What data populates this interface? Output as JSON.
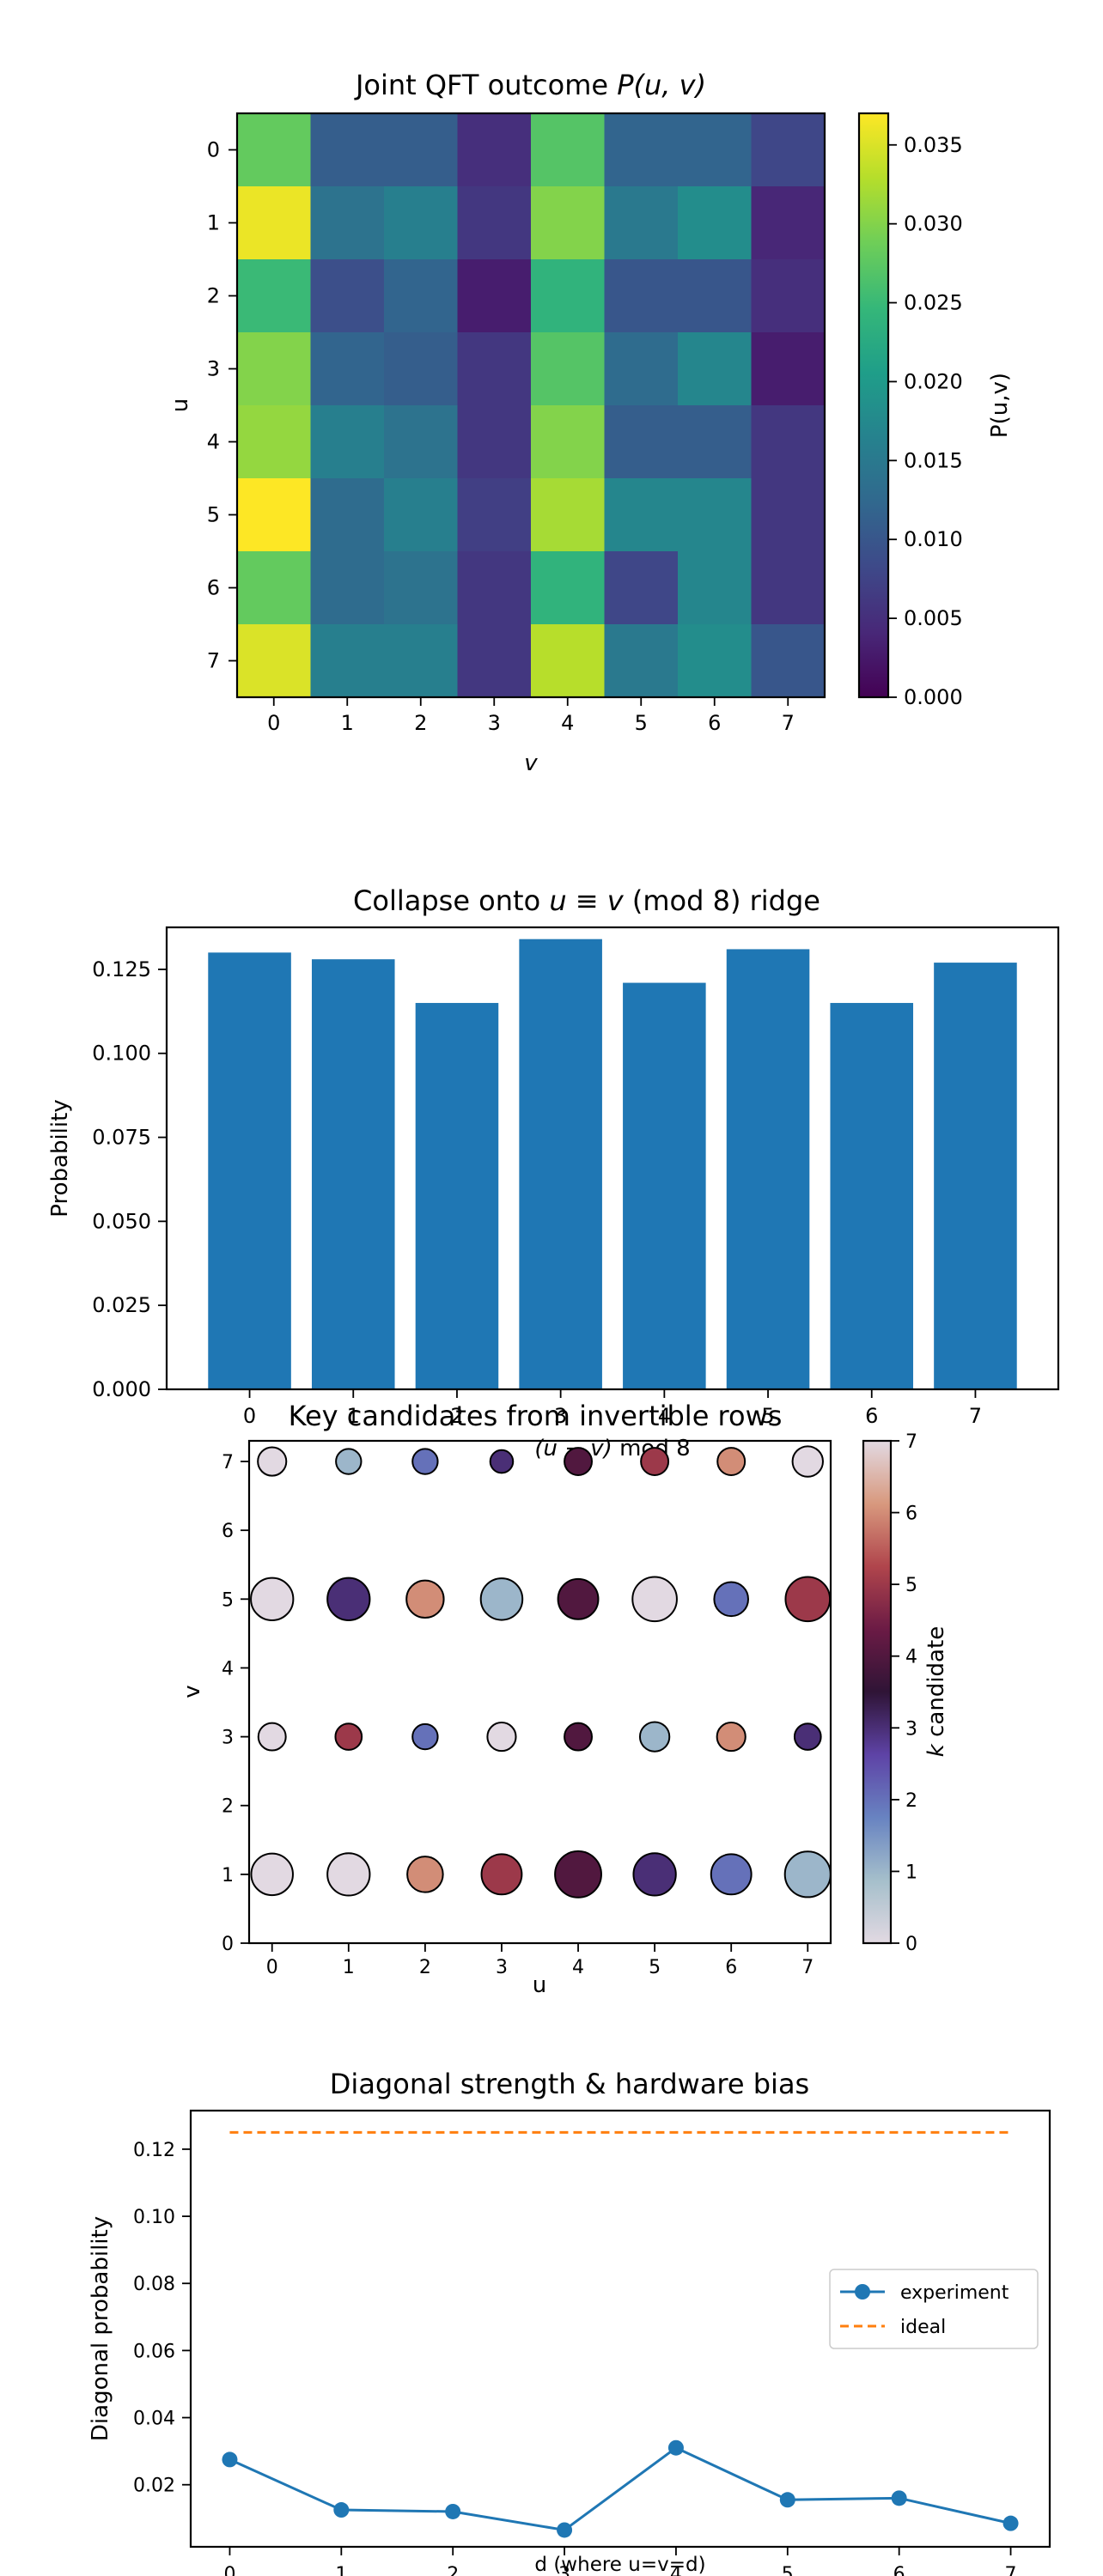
{
  "colors": {
    "bar": "#1f77b4",
    "experiment": "#1f77b4",
    "ideal": "#ff7f0e"
  },
  "chart_data": [
    {
      "type": "heatmap",
      "title_prefix": "Joint QFT outcome ",
      "title_math": "P(u, v)",
      "xlabel": "v",
      "ylabel": "u",
      "x_ticks": [
        "0",
        "1",
        "2",
        "3",
        "4",
        "5",
        "6",
        "7"
      ],
      "y_ticks": [
        "0",
        "1",
        "2",
        "3",
        "4",
        "5",
        "6",
        "7"
      ],
      "colormap": "viridis",
      "colorbar_label": "P(u,v)",
      "colorbar_range": [
        0,
        0.037
      ],
      "colorbar_ticks": [
        "0.000",
        "0.005",
        "0.010",
        "0.015",
        "0.020",
        "0.025",
        "0.030",
        "0.035"
      ],
      "colorbar_tick_values": [
        0,
        0.005,
        0.01,
        0.015,
        0.02,
        0.025,
        0.03,
        0.035
      ],
      "values": [
        [
          0.028,
          0.011,
          0.011,
          0.005,
          0.027,
          0.012,
          0.012,
          0.008
        ],
        [
          0.036,
          0.014,
          0.016,
          0.006,
          0.03,
          0.015,
          0.018,
          0.004
        ],
        [
          0.025,
          0.009,
          0.012,
          0.003,
          0.024,
          0.01,
          0.01,
          0.005
        ],
        [
          0.03,
          0.012,
          0.011,
          0.006,
          0.027,
          0.013,
          0.017,
          0.003
        ],
        [
          0.031,
          0.016,
          0.014,
          0.006,
          0.03,
          0.011,
          0.011,
          0.006
        ],
        [
          0.037,
          0.013,
          0.016,
          0.007,
          0.032,
          0.017,
          0.017,
          0.006
        ],
        [
          0.028,
          0.013,
          0.014,
          0.006,
          0.024,
          0.008,
          0.017,
          0.006
        ],
        [
          0.035,
          0.016,
          0.016,
          0.006,
          0.033,
          0.015,
          0.018,
          0.01
        ]
      ]
    },
    {
      "type": "bar",
      "title_prefix": "Collapse onto ",
      "title_math": "u ≡ v",
      "title_suffix": " (mod 8) ridge",
      "xlabel_math": "(u − v)",
      "xlabel_suffix": " mod 8",
      "ylabel": "Probability",
      "categories": [
        "0",
        "1",
        "2",
        "3",
        "4",
        "5",
        "6",
        "7"
      ],
      "values": [
        0.13,
        0.128,
        0.115,
        0.134,
        0.121,
        0.131,
        0.115,
        0.127
      ],
      "ylim": [
        0,
        0.1375
      ],
      "y_ticks": [
        "0.000",
        "0.025",
        "0.050",
        "0.075",
        "0.100",
        "0.125"
      ],
      "y_tick_values": [
        0,
        0.025,
        0.05,
        0.075,
        0.1,
        0.125
      ]
    },
    {
      "type": "scatter",
      "title": "Key candidates from invertible rows",
      "xlabel": "u",
      "ylabel": "v",
      "xlim": [
        -0.3,
        7.3
      ],
      "ylim": [
        0,
        7.3
      ],
      "x_ticks": [
        "0",
        "1",
        "2",
        "3",
        "4",
        "5",
        "6",
        "7"
      ],
      "y_ticks": [
        "0",
        "1",
        "2",
        "3",
        "4",
        "5",
        "6",
        "7"
      ],
      "colormap": "twilight",
      "colorbar_label_math": "k",
      "colorbar_label_suffix": " candidate",
      "colorbar_range": [
        0,
        7
      ],
      "colorbar_ticks": [
        "0",
        "1",
        "2",
        "3",
        "4",
        "5",
        "6",
        "7"
      ],
      "points": [
        {
          "u": 0,
          "v": 1,
          "k": 0,
          "p": 0.03
        },
        {
          "u": 1,
          "v": 1,
          "k": 0,
          "p": 0.031
        },
        {
          "u": 2,
          "v": 1,
          "k": 6,
          "p": 0.022
        },
        {
          "u": 3,
          "v": 1,
          "k": 5,
          "p": 0.028
        },
        {
          "u": 4,
          "v": 1,
          "k": 4,
          "p": 0.037
        },
        {
          "u": 5,
          "v": 1,
          "k": 3,
          "p": 0.031
        },
        {
          "u": 6,
          "v": 1,
          "k": 2,
          "p": 0.028
        },
        {
          "u": 7,
          "v": 1,
          "k": 1,
          "p": 0.036
        },
        {
          "u": 0,
          "v": 3,
          "k": 0,
          "p": 0.013
        },
        {
          "u": 1,
          "v": 3,
          "k": 5,
          "p": 0.012
        },
        {
          "u": 2,
          "v": 3,
          "k": 2,
          "p": 0.011
        },
        {
          "u": 3,
          "v": 3,
          "k": 0,
          "p": 0.014
        },
        {
          "u": 4,
          "v": 3,
          "k": 4,
          "p": 0.013
        },
        {
          "u": 5,
          "v": 3,
          "k": 1,
          "p": 0.015
        },
        {
          "u": 6,
          "v": 3,
          "k": 6,
          "p": 0.014
        },
        {
          "u": 7,
          "v": 3,
          "k": 3,
          "p": 0.012
        },
        {
          "u": 0,
          "v": 5,
          "k": 0,
          "p": 0.031
        },
        {
          "u": 1,
          "v": 5,
          "k": 3,
          "p": 0.031
        },
        {
          "u": 2,
          "v": 5,
          "k": 6,
          "p": 0.024
        },
        {
          "u": 3,
          "v": 5,
          "k": 1,
          "p": 0.03
        },
        {
          "u": 4,
          "v": 5,
          "k": 4,
          "p": 0.028
        },
        {
          "u": 5,
          "v": 5,
          "k": 0,
          "p": 0.034
        },
        {
          "u": 6,
          "v": 5,
          "k": 2,
          "p": 0.02
        },
        {
          "u": 7,
          "v": 5,
          "k": 5,
          "p": 0.034
        },
        {
          "u": 0,
          "v": 7,
          "k": 0,
          "p": 0.014
        },
        {
          "u": 1,
          "v": 7,
          "k": 1,
          "p": 0.011
        },
        {
          "u": 2,
          "v": 7,
          "k": 2,
          "p": 0.011
        },
        {
          "u": 3,
          "v": 7,
          "k": 3,
          "p": 0.009
        },
        {
          "u": 4,
          "v": 7,
          "k": 4,
          "p": 0.013
        },
        {
          "u": 5,
          "v": 7,
          "k": 5,
          "p": 0.013
        },
        {
          "u": 6,
          "v": 7,
          "k": 6,
          "p": 0.013
        },
        {
          "u": 7,
          "v": 7,
          "k": 0,
          "p": 0.016
        }
      ]
    },
    {
      "type": "line",
      "title": "Diagonal strength & hardware bias",
      "xlabel": "d  (where u=v=d)",
      "ylabel": "Diagonal probability",
      "x": [
        0,
        1,
        2,
        3,
        4,
        5,
        6,
        7
      ],
      "xlim": [
        -0.35,
        7.35
      ],
      "ylim": [
        0.0015,
        0.1315
      ],
      "x_ticks": [
        "0",
        "1",
        "2",
        "3",
        "4",
        "5",
        "6",
        "7"
      ],
      "y_ticks": [
        "0.02",
        "0.04",
        "0.06",
        "0.08",
        "0.10",
        "0.12"
      ],
      "y_tick_values": [
        0.02,
        0.04,
        0.06,
        0.08,
        0.1,
        0.12
      ],
      "legend_position": "center-right",
      "series": [
        {
          "name": "experiment",
          "style": "solid-marker",
          "values": [
            0.0275,
            0.0125,
            0.012,
            0.0065,
            0.031,
            0.0155,
            0.016,
            0.0085
          ]
        },
        {
          "name": "ideal",
          "style": "dashed",
          "values": [
            0.125,
            0.125,
            0.125,
            0.125,
            0.125,
            0.125,
            0.125,
            0.125
          ]
        }
      ]
    }
  ]
}
